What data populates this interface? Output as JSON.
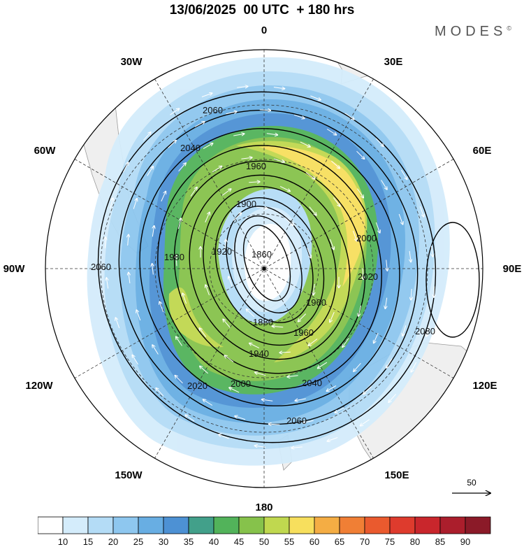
{
  "header": {
    "title": "13/06/2025  00 UTC  + 180 hrs",
    "brand": "MODES",
    "brand_mark": "©"
  },
  "map": {
    "projection": "south-polar-stereographic",
    "longitude_labels": [
      "0",
      "30E",
      "60E",
      "90E",
      "120E",
      "150E",
      "180",
      "150W",
      "120W",
      "90W",
      "60W",
      "30W"
    ],
    "contour_labels": [
      "1860",
      "1880",
      "1900",
      "1920",
      "1940",
      "1960",
      "1980",
      "2000",
      "2020",
      "2040",
      "2060",
      "2080"
    ],
    "wind_reference_label": "50",
    "land_color": "#efefef"
  },
  "colorbar": {
    "tick_labels": [
      "10",
      "15",
      "20",
      "25",
      "30",
      "35",
      "40",
      "45",
      "50",
      "55",
      "60",
      "65",
      "70",
      "75",
      "80",
      "85",
      "90"
    ],
    "colors": [
      "#ffffff",
      "#d4ecfb",
      "#b4dcf6",
      "#8ec7ef",
      "#68aee3",
      "#4d91d4",
      "#42a08a",
      "#52b35a",
      "#86c24b",
      "#c0d84f",
      "#f7df5d",
      "#f4ad44",
      "#f07f35",
      "#ea5a2e",
      "#de3b2d",
      "#c9262c",
      "#ab1e2c",
      "#8b1a28"
    ]
  }
}
